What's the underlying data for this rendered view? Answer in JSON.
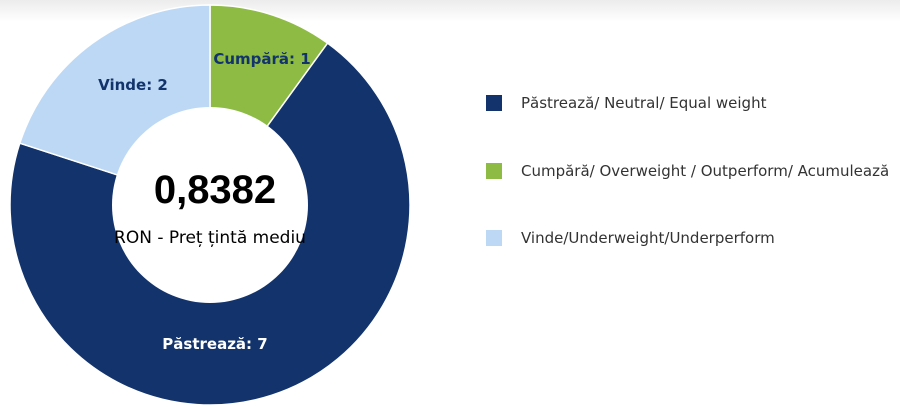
{
  "chart_data": {
    "type": "pie",
    "categories": [
      "Păstrează",
      "Cumpără",
      "Vinde"
    ],
    "values": [
      7,
      1,
      2
    ],
    "slice_labels": [
      "Păstrează: 7",
      "Cumpără: 1",
      "Vinde: 2"
    ],
    "colors": [
      "#12336b",
      "#8dbb44",
      "#bdd8f5"
    ],
    "label_colors": [
      "#ffffff",
      "#12336b",
      "#12336b"
    ],
    "center_value": "0,8382",
    "center_caption": "RON - Preț țintă mediu",
    "legend": {
      "placement": "right",
      "items": [
        {
          "label": "Păstrează/ Neutral/ Equal weight",
          "color": "#12336b"
        },
        {
          "label": "Cumpără/ Overweight / Outperform/ Acumulează",
          "color": "#8dbb44"
        },
        {
          "label": "Vinde/Underweight/Underperform",
          "color": "#bdd8f5"
        }
      ]
    }
  }
}
